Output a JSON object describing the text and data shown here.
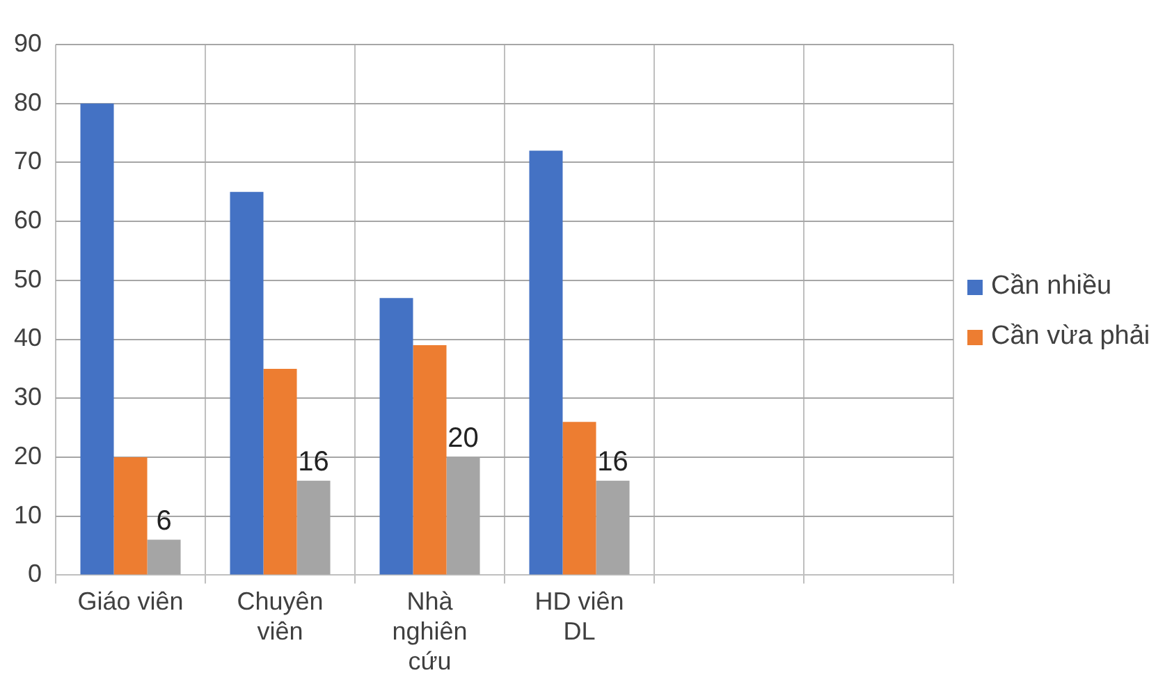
{
  "chart_data": {
    "type": "bar",
    "categories": [
      "Giáo viên",
      "Chuyên viên",
      "Nhà nghiên cứu",
      "HD viên DL",
      null,
      null
    ],
    "series": [
      {
        "name": "Cần nhiều",
        "color": "#4472c4",
        "values": [
          80,
          65,
          47,
          72,
          null,
          null
        ]
      },
      {
        "name": "Cần vừa phải",
        "color": "#ed7d31",
        "values": [
          20,
          35,
          39,
          26,
          null,
          null
        ]
      },
      {
        "color": "#a5a5a5",
        "values": [
          6,
          16,
          20,
          16,
          null,
          null
        ],
        "value_labels": [
          "6",
          "16",
          "20",
          "16",
          null,
          null
        ]
      }
    ],
    "ylim": [
      0,
      90
    ],
    "yticks": [
      0,
      10,
      20,
      30,
      40,
      50,
      60,
      70,
      80,
      90
    ],
    "grid": true,
    "legend": "right"
  }
}
